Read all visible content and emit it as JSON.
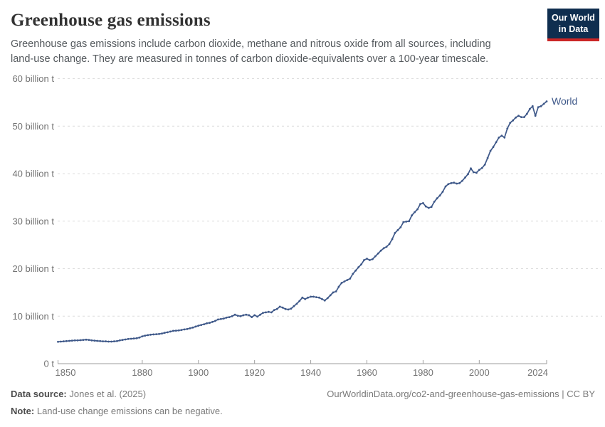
{
  "header": {
    "title": "Greenhouse gas emissions",
    "subtitle": "Greenhouse gas emissions include carbon dioxide, methane and nitrous oxide from all sources, including land-use change. They are measured in tonnes of carbon dioxide-equivalents over a 100-year timescale."
  },
  "logo": {
    "line1": "Our World",
    "line2": "in Data"
  },
  "footer": {
    "source_label": "Data source:",
    "source_value": "Jones et al. (2025)",
    "note_label": "Note:",
    "note_value": "Land-use change emissions can be negative.",
    "citation": "OurWorldinData.org/co2-and-greenhouse-gas-emissions | CC BY"
  },
  "colors": {
    "line": "#3e5889",
    "grid": "#dcdcdc",
    "axis": "#9e9e9e",
    "tick_label": "#737373",
    "logo_bg": "#0f2e4f",
    "logo_stripe": "#cb2626"
  },
  "chart_data": {
    "type": "line",
    "title": "Greenhouse gas emissions",
    "xlabel": "",
    "ylabel": "",
    "xlim": [
      1850,
      2024
    ],
    "ylim": [
      0,
      60
    ],
    "grid": "horizontal-dashed",
    "legend_position": "end-of-line",
    "x_ticks": [
      1850,
      1880,
      1900,
      1920,
      1940,
      1960,
      1980,
      2000,
      2024
    ],
    "y_ticks": [
      0,
      10,
      20,
      30,
      40,
      50,
      60
    ],
    "y_tick_labels": [
      "0 t",
      "10 billion t",
      "20 billion t",
      "30 billion t",
      "40 billion t",
      "50 billion t",
      "60 billion t"
    ],
    "unit": "billion tonnes of CO2-equivalents",
    "series": [
      {
        "name": "World",
        "color": "#3e5889",
        "year_start": 1850,
        "years": [
          1850,
          1851,
          1852,
          1853,
          1854,
          1855,
          1856,
          1857,
          1858,
          1859,
          1860,
          1861,
          1862,
          1863,
          1864,
          1865,
          1866,
          1867,
          1868,
          1869,
          1870,
          1871,
          1872,
          1873,
          1874,
          1875,
          1876,
          1877,
          1878,
          1879,
          1880,
          1881,
          1882,
          1883,
          1884,
          1885,
          1886,
          1887,
          1888,
          1889,
          1890,
          1891,
          1892,
          1893,
          1894,
          1895,
          1896,
          1897,
          1898,
          1899,
          1900,
          1901,
          1902,
          1903,
          1904,
          1905,
          1906,
          1907,
          1908,
          1909,
          1910,
          1911,
          1912,
          1913,
          1914,
          1915,
          1916,
          1917,
          1918,
          1919,
          1920,
          1921,
          1922,
          1923,
          1924,
          1925,
          1926,
          1927,
          1928,
          1929,
          1930,
          1931,
          1932,
          1933,
          1934,
          1935,
          1936,
          1937,
          1938,
          1939,
          1940,
          1941,
          1942,
          1943,
          1944,
          1945,
          1946,
          1947,
          1948,
          1949,
          1950,
          1951,
          1952,
          1953,
          1954,
          1955,
          1956,
          1957,
          1958,
          1959,
          1960,
          1961,
          1962,
          1963,
          1964,
          1965,
          1966,
          1967,
          1968,
          1969,
          1970,
          1971,
          1972,
          1973,
          1974,
          1975,
          1976,
          1977,
          1978,
          1979,
          1980,
          1981,
          1982,
          1983,
          1984,
          1985,
          1986,
          1987,
          1988,
          1989,
          1990,
          1991,
          1992,
          1993,
          1994,
          1995,
          1996,
          1997,
          1998,
          1999,
          2000,
          2001,
          2002,
          2003,
          2004,
          2005,
          2006,
          2007,
          2008,
          2009,
          2010,
          2011,
          2012,
          2013,
          2014,
          2015,
          2016,
          2017,
          2018,
          2019,
          2020,
          2021,
          2022,
          2023,
          2024
        ],
        "values": [
          4.6,
          4.65,
          4.7,
          4.75,
          4.8,
          4.85,
          4.9,
          4.9,
          4.95,
          5.0,
          5.05,
          5.0,
          4.9,
          4.85,
          4.8,
          4.75,
          4.7,
          4.7,
          4.65,
          4.65,
          4.7,
          4.75,
          4.9,
          5.0,
          5.1,
          5.2,
          5.25,
          5.3,
          5.35,
          5.5,
          5.75,
          5.9,
          6.0,
          6.1,
          6.15,
          6.2,
          6.25,
          6.35,
          6.5,
          6.6,
          6.75,
          6.9,
          6.95,
          7.0,
          7.1,
          7.2,
          7.3,
          7.45,
          7.6,
          7.8,
          8.0,
          8.15,
          8.3,
          8.5,
          8.6,
          8.8,
          9.0,
          9.3,
          9.4,
          9.5,
          9.7,
          9.8,
          10.0,
          10.3,
          10.1,
          10.0,
          10.2,
          10.3,
          10.2,
          9.8,
          10.2,
          9.9,
          10.3,
          10.7,
          10.8,
          10.9,
          10.8,
          11.3,
          11.5,
          12.0,
          11.8,
          11.5,
          11.4,
          11.6,
          12.1,
          12.6,
          13.2,
          13.9,
          13.6,
          13.9,
          14.1,
          14.1,
          14.0,
          13.9,
          13.6,
          13.3,
          13.8,
          14.4,
          15.0,
          15.2,
          16.2,
          17.0,
          17.3,
          17.6,
          17.9,
          18.9,
          19.6,
          20.3,
          20.9,
          21.8,
          22.1,
          21.8,
          22.0,
          22.6,
          23.2,
          23.8,
          24.3,
          24.6,
          25.2,
          26.2,
          27.5,
          28.1,
          28.7,
          29.8,
          29.9,
          30.0,
          31.2,
          31.9,
          32.5,
          33.6,
          33.8,
          33.1,
          32.8,
          33.0,
          34.1,
          34.8,
          35.4,
          36.2,
          37.3,
          37.8,
          38.0,
          38.1,
          37.9,
          38.0,
          38.5,
          39.2,
          39.9,
          41.1,
          40.3,
          40.2,
          40.8,
          41.2,
          41.9,
          43.3,
          44.8,
          45.6,
          46.6,
          47.6,
          48.0,
          47.6,
          49.5,
          50.7,
          51.2,
          51.8,
          52.2,
          51.9,
          51.9,
          52.6,
          53.6,
          54.2,
          52.2,
          54.0,
          54.2,
          54.7,
          55.2
        ]
      }
    ]
  }
}
